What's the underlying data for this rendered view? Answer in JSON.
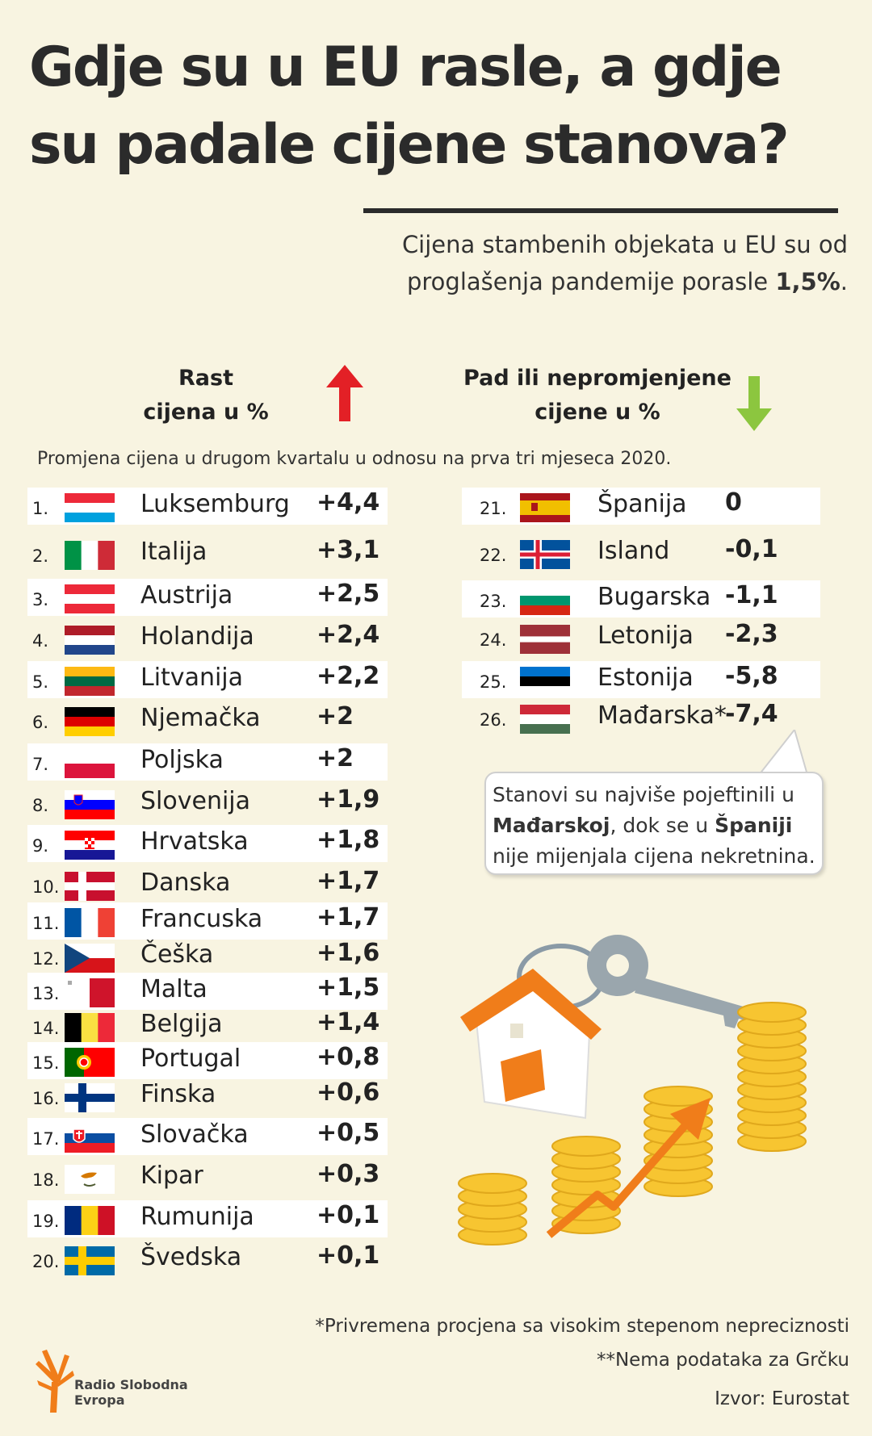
{
  "title_line1": "Gdje su u EU rasle, a gdje",
  "title_line2": "su padale cijene stanova?",
  "subtitle_line1": "Cijena stambenih objekata u EU su od",
  "subtitle_line2_text": "proglašenja pandemije porasle ",
  "subtitle_line2_value": "1,5%",
  "subtitle_line2_end": ".",
  "head_rise_line1": "Rast",
  "head_rise_line2": "cijena u %",
  "head_fall_line1": "Pad ili nepromjenjene",
  "head_fall_line2": "cijene u %",
  "note": "Promjena cijena u drugom kvartalu u odnosu na prva tri mjeseca 2020.",
  "bubble": {
    "part1": "Stanovi su najviše pojeftinili u ",
    "bold1": "Mađarskoj",
    "part2": ", dok se u ",
    "bold2": "Španiji",
    "part3": " nije mijenjala cijena nekretnina."
  },
  "footnotes": {
    "f1": "*Privremena procjena sa visokim stepenom nepreciznosti",
    "f2": "**Nema podataka za Grčku",
    "f3": "Izvor: Eurostat"
  },
  "logo": {
    "line1": "Radio Slobodna",
    "line2": "Evropa"
  },
  "colors": {
    "background": "#f8f4e1",
    "rise_arrow": "#e32026",
    "fall_arrow": "#8cc63f",
    "band": "#ffffff",
    "accent_orange": "#f07d1a",
    "coin": "#f7c531"
  },
  "chart_data": {
    "type": "table",
    "title": "Gdje su u EU rasle, a gdje su padale cijene stanova?",
    "columns": [
      "Rast cijena u %",
      "Pad ili nepromjenjene cijene u %"
    ],
    "rows_left": [
      {
        "rank": "1.",
        "country": "Luksemburg",
        "value": "+4,4",
        "flag": "luxembourg"
      },
      {
        "rank": "2.",
        "country": "Italija",
        "value": "+3,1",
        "flag": "italy"
      },
      {
        "rank": "3.",
        "country": "Austrija",
        "value": "+2,5",
        "flag": "austria"
      },
      {
        "rank": "4.",
        "country": "Holandija",
        "value": "+2,4",
        "flag": "netherlands"
      },
      {
        "rank": "5.",
        "country": "Litvanija",
        "value": "+2,2",
        "flag": "lithuania"
      },
      {
        "rank": "6.",
        "country": "Njemačka",
        "value": "+2",
        "flag": "germany"
      },
      {
        "rank": "7.",
        "country": "Poljska",
        "value": "+2",
        "flag": "poland"
      },
      {
        "rank": "8.",
        "country": "Slovenija",
        "value": "+1,9",
        "flag": "slovenia"
      },
      {
        "rank": "9.",
        "country": "Hrvatska",
        "value": "+1,8",
        "flag": "croatia"
      },
      {
        "rank": "10.",
        "country": "Danska",
        "value": "+1,7",
        "flag": "denmark"
      },
      {
        "rank": "11.",
        "country": "Francuska",
        "value": "+1,7",
        "flag": "france"
      },
      {
        "rank": "12.",
        "country": "Češka",
        "value": "+1,6",
        "flag": "czechia"
      },
      {
        "rank": "13.",
        "country": "Malta",
        "value": "+1,5",
        "flag": "malta"
      },
      {
        "rank": "14.",
        "country": "Belgija",
        "value": "+1,4",
        "flag": "belgium"
      },
      {
        "rank": "15.",
        "country": "Portugal",
        "value": "+0,8",
        "flag": "portugal"
      },
      {
        "rank": "16.",
        "country": "Finska",
        "value": "+0,6",
        "flag": "finland"
      },
      {
        "rank": "17.",
        "country": "Slovačka",
        "value": "+0,5",
        "flag": "slovakia"
      },
      {
        "rank": "18.",
        "country": "Kipar",
        "value": "+0,3",
        "flag": "cyprus"
      },
      {
        "rank": "19.",
        "country": "Rumunija",
        "value": "+0,1",
        "flag": "romania"
      },
      {
        "rank": "20.",
        "country": "Švedska",
        "value": "+0,1",
        "flag": "sweden"
      }
    ],
    "rows_right": [
      {
        "rank": "21.",
        "country": "Španija",
        "value": "0",
        "flag": "spain"
      },
      {
        "rank": "22.",
        "country": "Island",
        "value": "-0,1",
        "flag": "iceland"
      },
      {
        "rank": "23.",
        "country": "Bugarska",
        "value": "-1,1",
        "flag": "bulgaria"
      },
      {
        "rank": "24.",
        "country": "Letonija",
        "value": "-2,3",
        "flag": "latvia"
      },
      {
        "rank": "25.",
        "country": "Estonija",
        "value": "-5,8",
        "flag": "estonia"
      },
      {
        "rank": "26.",
        "country": "Mađarska*",
        "value": "-7,4",
        "flag": "hungary"
      }
    ]
  }
}
